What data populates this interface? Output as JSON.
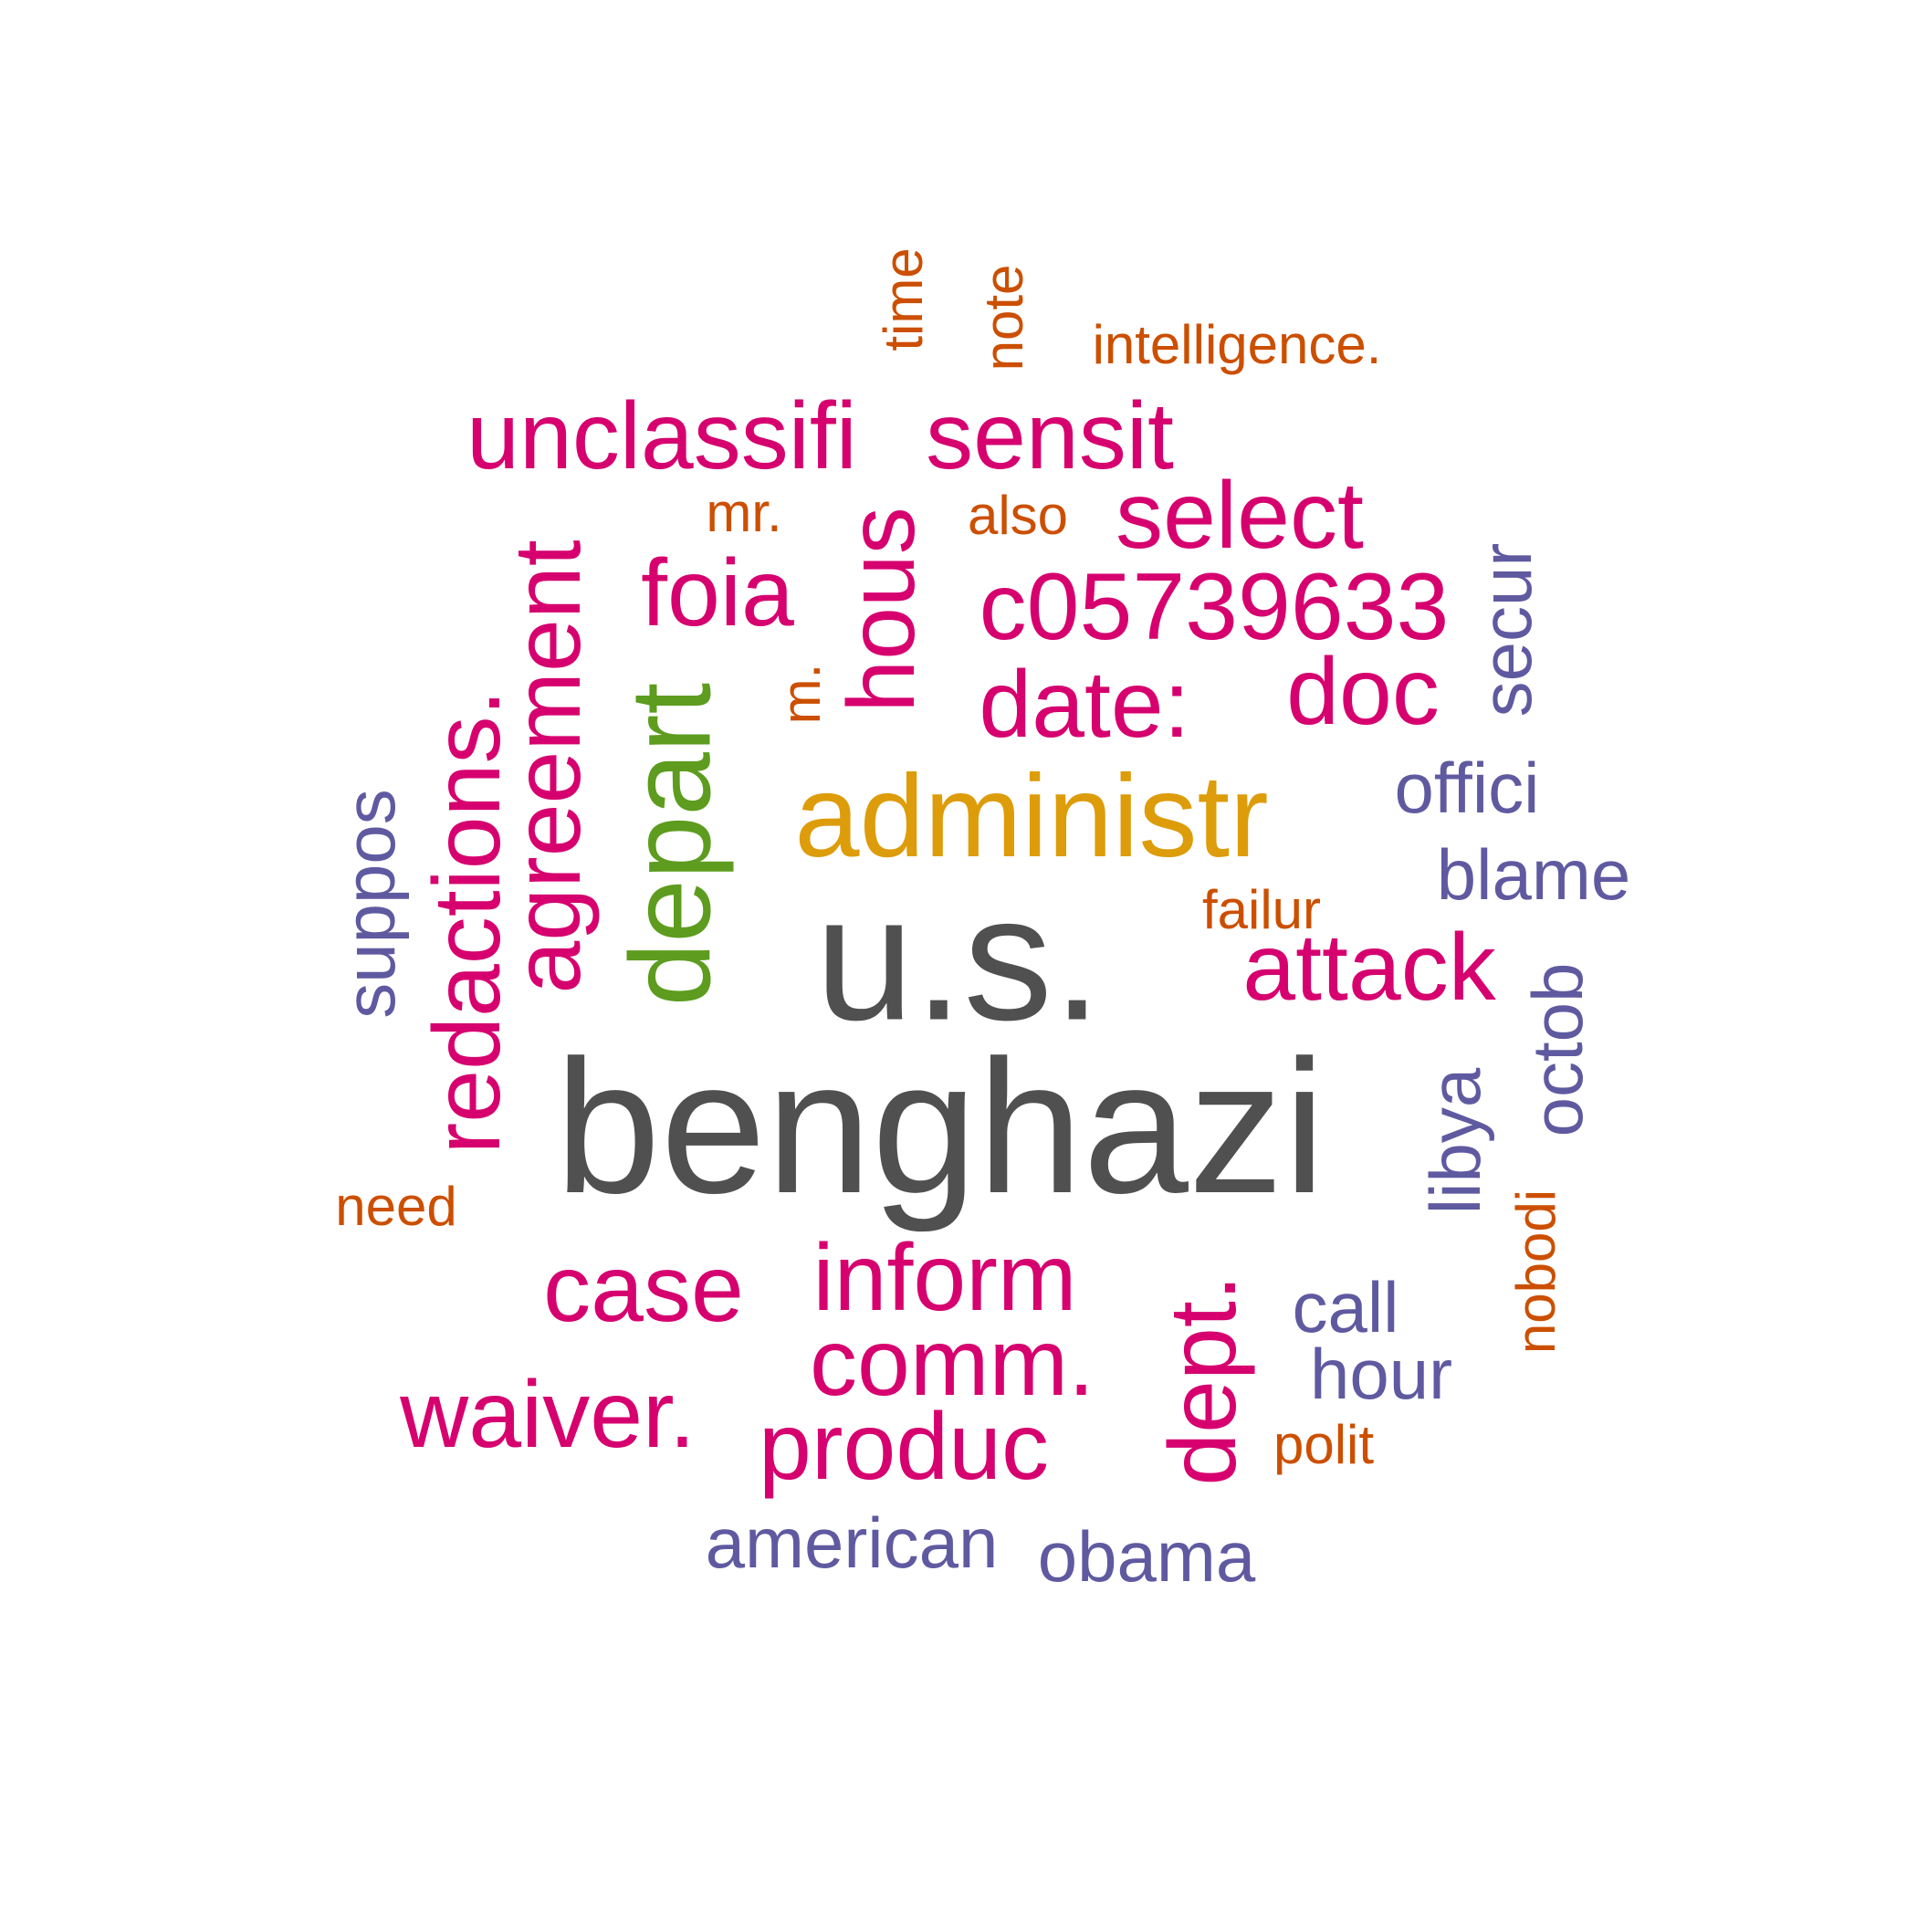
{
  "colors": {
    "gray": "#505050",
    "gold": "#dd9c0a",
    "green": "#5d9c1e",
    "magenta": "#d6006f",
    "purple": "#5f5aa0",
    "orange": "#cc4f00"
  },
  "words": [
    {
      "text": "benghazi",
      "color": "gray"
    },
    {
      "text": "u.s.",
      "color": "gray"
    },
    {
      "text": "administr",
      "color": "gold"
    },
    {
      "text": "depart",
      "color": "green"
    },
    {
      "text": "unclassifi",
      "color": "magenta"
    },
    {
      "text": "sensit",
      "color": "magenta"
    },
    {
      "text": "select",
      "color": "magenta"
    },
    {
      "text": "foia",
      "color": "magenta"
    },
    {
      "text": "hous",
      "color": "magenta"
    },
    {
      "text": "c05739633",
      "color": "magenta"
    },
    {
      "text": "date:",
      "color": "magenta"
    },
    {
      "text": "doc",
      "color": "magenta"
    },
    {
      "text": "agreement",
      "color": "magenta"
    },
    {
      "text": "redactions.",
      "color": "magenta"
    },
    {
      "text": "attack",
      "color": "magenta"
    },
    {
      "text": "case",
      "color": "magenta"
    },
    {
      "text": "inform",
      "color": "magenta"
    },
    {
      "text": "comm.",
      "color": "magenta"
    },
    {
      "text": "waiver.",
      "color": "magenta"
    },
    {
      "text": "produc",
      "color": "magenta"
    },
    {
      "text": "dept.",
      "color": "magenta"
    },
    {
      "text": "suppos",
      "color": "purple"
    },
    {
      "text": "secur",
      "color": "purple"
    },
    {
      "text": "offici",
      "color": "purple"
    },
    {
      "text": "blame",
      "color": "purple"
    },
    {
      "text": "libya",
      "color": "purple"
    },
    {
      "text": "octob",
      "color": "purple"
    },
    {
      "text": "call",
      "color": "purple"
    },
    {
      "text": "hour",
      "color": "purple"
    },
    {
      "text": "american",
      "color": "purple"
    },
    {
      "text": "obama",
      "color": "purple"
    },
    {
      "text": "time",
      "color": "orange"
    },
    {
      "text": "note",
      "color": "orange"
    },
    {
      "text": "intelligence.",
      "color": "orange"
    },
    {
      "text": "mr.",
      "color": "orange"
    },
    {
      "text": "also",
      "color": "orange"
    },
    {
      "text": "m.",
      "color": "orange"
    },
    {
      "text": "failur",
      "color": "orange"
    },
    {
      "text": "need",
      "color": "orange"
    },
    {
      "text": "nobodi",
      "color": "orange"
    },
    {
      "text": "polit",
      "color": "orange"
    }
  ]
}
